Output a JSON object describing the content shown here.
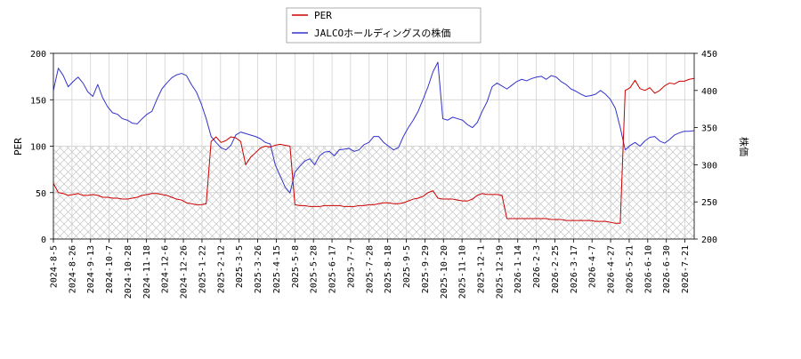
{
  "chart_data": {
    "type": "line",
    "title": "",
    "xlabel": "",
    "ylabel_left": "PER",
    "ylabel_right": "株価",
    "ylim_left": [
      0,
      200
    ],
    "ylim_right": [
      200,
      450
    ],
    "yticks_left": [
      "0",
      "50",
      "100",
      "150",
      "200"
    ],
    "yticks_right": [
      "200",
      "250",
      "300",
      "350",
      "400",
      "450"
    ],
    "hatched_band_left": [
      0,
      100
    ],
    "grid": true,
    "legend_position": "top-center",
    "x_tick_labels": [
      "2024-8-5",
      "2024-8-26",
      "2024-9-13",
      "2024-10-7",
      "2024-10-28",
      "2024-11-18",
      "2024-12-6",
      "2024-12-26",
      "2025-1-22",
      "2025-2-12",
      "2025-3-5",
      "2025-3-26",
      "2025-4-15",
      "2025-5-8",
      "2025-5-28",
      "2025-6-17",
      "2025-7-7",
      "2025-7-28",
      "2025-8-18",
      "2025-9-5",
      "2025-9-29",
      "2025-10-20",
      "2025-11-10",
      "2025-12-1",
      "2025-12-19",
      "2026-1-14",
      "2026-2-3",
      "2026-2-25",
      "2026-3-17",
      "2026-4-7",
      "2026-4-27",
      "2026-5-21",
      "2026-6-10",
      "2026-6-30",
      "2026-7-21"
    ],
    "series": [
      {
        "name": "PER",
        "axis": "left",
        "color": "#cc0000",
        "values": [
          60,
          50,
          49,
          47,
          48,
          49,
          47,
          47,
          48,
          47,
          45,
          45,
          44,
          44,
          43,
          43,
          44,
          45,
          47,
          48,
          49,
          49,
          48,
          47,
          45,
          43,
          42,
          39,
          38,
          37,
          37,
          38,
          105,
          110,
          104,
          106,
          110,
          109,
          105,
          80,
          88,
          93,
          98,
          100,
          99,
          101,
          102,
          101,
          100,
          37,
          36,
          36,
          35,
          35,
          35,
          36,
          36,
          36,
          36,
          35,
          35,
          35,
          36,
          36,
          37,
          37,
          38,
          39,
          39,
          38,
          38,
          39,
          41,
          43,
          44,
          46,
          50,
          52,
          44,
          43,
          43,
          43,
          42,
          41,
          41,
          43,
          47,
          49,
          48,
          48,
          48,
          47,
          22,
          22,
          22,
          22,
          22,
          22,
          22,
          22,
          22,
          21,
          21,
          21,
          20,
          20,
          20,
          20,
          20,
          20,
          19,
          19,
          19,
          18,
          17,
          17,
          160,
          163,
          171,
          162,
          160,
          163,
          157,
          160,
          165,
          168,
          167,
          170,
          170,
          172,
          173
        ]
      },
      {
        "name": "JALCOホールディングスの株価",
        "axis": "right",
        "color": "#3333cc",
        "values": [
          400,
          430,
          420,
          405,
          412,
          418,
          410,
          398,
          392,
          408,
          390,
          378,
          370,
          368,
          362,
          360,
          356,
          355,
          362,
          368,
          372,
          388,
          402,
          410,
          417,
          421,
          423,
          420,
          408,
          398,
          382,
          362,
          338,
          330,
          323,
          320,
          326,
          340,
          344,
          342,
          340,
          338,
          335,
          330,
          328,
          300,
          285,
          270,
          262,
          290,
          298,
          305,
          308,
          300,
          312,
          317,
          318,
          312,
          320,
          321,
          322,
          318,
          320,
          327,
          330,
          338,
          338,
          330,
          325,
          320,
          323,
          338,
          350,
          360,
          372,
          388,
          405,
          425,
          438,
          362,
          360,
          364,
          362,
          360,
          354,
          350,
          357,
          372,
          385,
          405,
          410,
          406,
          402,
          407,
          412,
          415,
          413,
          416,
          418,
          419,
          415,
          420,
          418,
          412,
          408,
          402,
          399,
          395,
          392,
          393,
          395,
          400,
          395,
          388,
          376,
          350,
          320,
          326,
          330,
          325,
          332,
          337,
          338,
          332,
          329,
          334,
          340,
          343,
          345,
          345,
          346
        ]
      }
    ]
  },
  "legend": {
    "items": [
      {
        "label": "PER",
        "color": "#cc0000"
      },
      {
        "label": "JALCOホールディングスの株価",
        "color": "#3333cc"
      }
    ]
  }
}
